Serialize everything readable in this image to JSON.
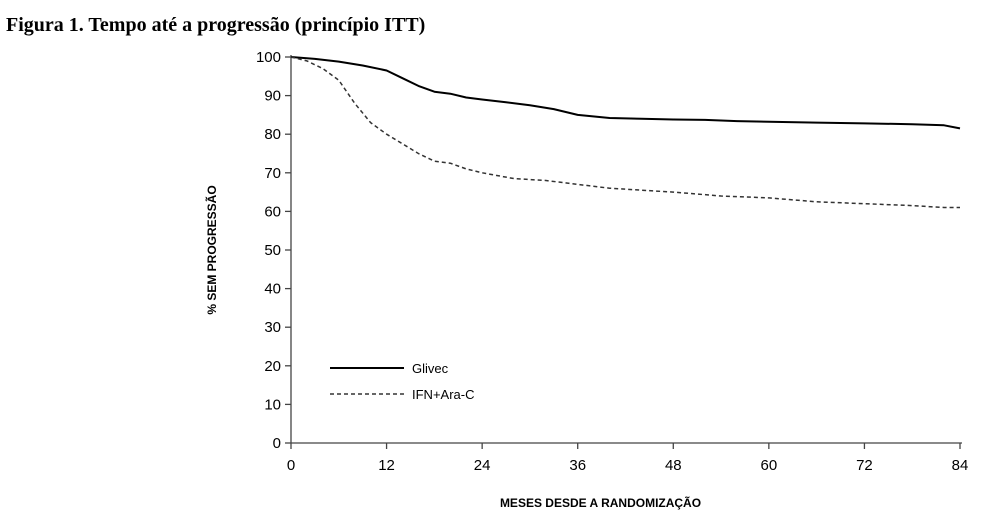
{
  "figure_title": "Figura 1. Tempo até a progressão (princípio ITT)",
  "chart_data": {
    "type": "line",
    "xlabel": "MESES DESDE A RANDOMIZAÇÃO",
    "ylabel": "% SEM PROGRESSÃO",
    "xlim": [
      0,
      84
    ],
    "ylim": [
      0,
      100
    ],
    "x_ticks": [
      0,
      12,
      24,
      36,
      48,
      60,
      72,
      84
    ],
    "y_ticks": [
      0,
      10,
      20,
      30,
      40,
      50,
      60,
      70,
      80,
      90,
      100
    ],
    "grid": false,
    "legend_position": "bottom-left",
    "series": [
      {
        "name": "Glivec",
        "style": "solid",
        "color": "#000000",
        "x": [
          0,
          3,
          6,
          9,
          12,
          14,
          16,
          18,
          20,
          22,
          24,
          27,
          30,
          33,
          36,
          40,
          44,
          48,
          52,
          56,
          60,
          66,
          72,
          78,
          82,
          84
        ],
        "y": [
          100,
          99.5,
          98.8,
          97.8,
          96.5,
          94.5,
          92.5,
          91,
          90.5,
          89.5,
          89,
          88.3,
          87.5,
          86.5,
          85,
          84.2,
          84,
          83.8,
          83.7,
          83.4,
          83.2,
          83,
          82.8,
          82.6,
          82.3,
          81.5
        ]
      },
      {
        "name": "IFN+Ara-C",
        "style": "dashed",
        "color": "#333333",
        "x": [
          0,
          2,
          4,
          6,
          8,
          10,
          12,
          14,
          16,
          18,
          20,
          22,
          24,
          28,
          32,
          36,
          40,
          44,
          48,
          54,
          60,
          66,
          72,
          78,
          82,
          84
        ],
        "y": [
          100,
          99,
          97,
          94,
          88,
          83,
          80,
          77.5,
          75,
          73,
          72.5,
          71,
          70,
          68.5,
          68,
          67,
          66,
          65.5,
          65,
          64,
          63.5,
          62.5,
          62,
          61.5,
          61,
          61
        ]
      }
    ]
  }
}
